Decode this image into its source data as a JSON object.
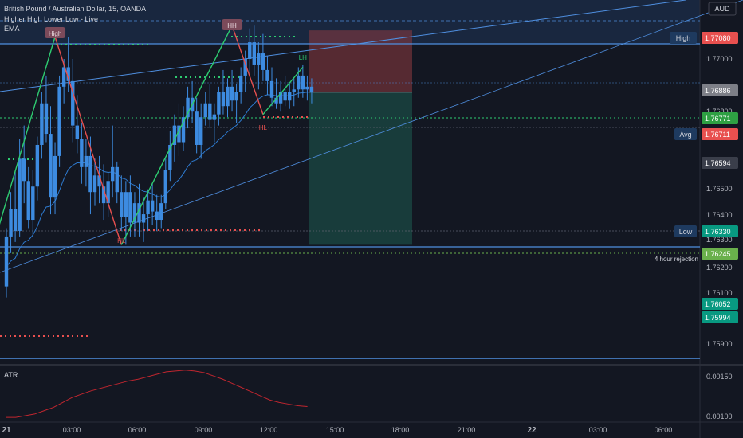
{
  "header": {
    "symbol_line": "British Pound / Australian Dollar, 15, OANDA",
    "indicator_1": "Higher High Lower Low - Live",
    "indicator_2": "EMA",
    "currency": "AUD",
    "lower_indicator": "ATR"
  },
  "colors": {
    "background": "#131722",
    "bull_candle": "#3d8be0",
    "bear_candle": "#3d8be0",
    "ema": "#2e7bd1",
    "zigzag_up": "#2ecc71",
    "zigzag_down": "#e8504f",
    "atr": "#c0262f",
    "stop_zone": "#8e3b3f",
    "target_zone": "#1f6b5c"
  },
  "chart_data": [
    {
      "type": "candlestick",
      "symbol": "British Pound / Australian Dollar",
      "interval": "15",
      "source": "OANDA",
      "yaxis": {
        "ticks": [
          "1.77000",
          "1.76800",
          "1.76500",
          "1.76400",
          "1.76300",
          "1.76200",
          "1.76100",
          "1.75900"
        ]
      },
      "xaxis": {
        "ticks": [
          "21",
          "03:00",
          "06:00",
          "09:00",
          "12:00",
          "15:00",
          "18:00",
          "21:00",
          "22",
          "03:00",
          "06:00"
        ]
      },
      "ohlc": [
        [
          1.7618,
          1.7639,
          1.7614,
          1.7636
        ],
        [
          1.7636,
          1.7652,
          1.763,
          1.7646
        ],
        [
          1.7646,
          1.766,
          1.7634,
          1.7638
        ],
        [
          1.7638,
          1.7671,
          1.7636,
          1.7664
        ],
        [
          1.7664,
          1.7676,
          1.7648,
          1.7656
        ],
        [
          1.7656,
          1.7661,
          1.7639,
          1.7642
        ],
        [
          1.7642,
          1.766,
          1.7636,
          1.7654
        ],
        [
          1.7654,
          1.7672,
          1.7649,
          1.7669
        ],
        [
          1.7669,
          1.7688,
          1.7664,
          1.7684
        ],
        [
          1.7684,
          1.7694,
          1.767,
          1.7673
        ],
        [
          1.7673,
          1.7683,
          1.7644,
          1.765
        ],
        [
          1.765,
          1.767,
          1.7644,
          1.7665
        ],
        [
          1.7665,
          1.7694,
          1.7661,
          1.769
        ],
        [
          1.769,
          1.77,
          1.7684,
          1.7697
        ],
        [
          1.7697,
          1.7708,
          1.7688,
          1.7692
        ],
        [
          1.7692,
          1.77,
          1.767,
          1.7676
        ],
        [
          1.7676,
          1.7687,
          1.7666,
          1.7671
        ],
        [
          1.7671,
          1.7677,
          1.7655,
          1.7661
        ],
        [
          1.7661,
          1.7671,
          1.7654,
          1.7665
        ],
        [
          1.7665,
          1.7672,
          1.7644,
          1.7652
        ],
        [
          1.7652,
          1.7664,
          1.7647,
          1.7658
        ],
        [
          1.7658,
          1.7665,
          1.7648,
          1.7654
        ],
        [
          1.7654,
          1.7662,
          1.7642,
          1.7648
        ],
        [
          1.7648,
          1.7659,
          1.7643,
          1.7656
        ],
        [
          1.7656,
          1.7676,
          1.765,
          1.7661
        ],
        [
          1.7661,
          1.7663,
          1.7648,
          1.7652
        ],
        [
          1.7652,
          1.7658,
          1.7638,
          1.7643
        ],
        [
          1.7643,
          1.7656,
          1.7633,
          1.7652
        ],
        [
          1.7652,
          1.7658,
          1.7636,
          1.7641
        ],
        [
          1.7641,
          1.7652,
          1.7636,
          1.7648
        ],
        [
          1.7648,
          1.7655,
          1.7636,
          1.7641
        ],
        [
          1.7641,
          1.765,
          1.7634,
          1.7644
        ],
        [
          1.7644,
          1.7653,
          1.7638,
          1.7649
        ],
        [
          1.7649,
          1.7655,
          1.764,
          1.7645
        ],
        [
          1.7645,
          1.7651,
          1.7638,
          1.7642
        ],
        [
          1.7642,
          1.7651,
          1.7639,
          1.7648
        ],
        [
          1.7648,
          1.7664,
          1.7646,
          1.766
        ],
        [
          1.766,
          1.7674,
          1.7656,
          1.7669
        ],
        [
          1.7669,
          1.768,
          1.7663,
          1.7676
        ],
        [
          1.7676,
          1.7684,
          1.7665,
          1.767
        ],
        [
          1.767,
          1.7683,
          1.7667,
          1.7679
        ],
        [
          1.7679,
          1.769,
          1.7675,
          1.7686
        ],
        [
          1.7686,
          1.7692,
          1.7677,
          1.7681
        ],
        [
          1.7681,
          1.7686,
          1.7666,
          1.7669
        ],
        [
          1.7669,
          1.7684,
          1.7664,
          1.7679
        ],
        [
          1.7679,
          1.7688,
          1.7676,
          1.7684
        ],
        [
          1.7684,
          1.7691,
          1.7675,
          1.7678
        ],
        [
          1.7678,
          1.7684,
          1.767,
          1.768
        ],
        [
          1.768,
          1.769,
          1.7676,
          1.7688
        ],
        [
          1.7688,
          1.7696,
          1.768,
          1.7683
        ],
        [
          1.7683,
          1.7693,
          1.7679,
          1.769
        ],
        [
          1.769,
          1.7696,
          1.7681,
          1.7685
        ],
        [
          1.7685,
          1.7691,
          1.7677,
          1.7688
        ],
        [
          1.7688,
          1.7697,
          1.7684,
          1.7694
        ],
        [
          1.7694,
          1.7703,
          1.7688,
          1.77
        ],
        [
          1.77,
          1.7711,
          1.7695,
          1.7706
        ],
        [
          1.7706,
          1.7712,
          1.7694,
          1.7698
        ],
        [
          1.7698,
          1.7706,
          1.7689,
          1.7702
        ],
        [
          1.7702,
          1.7709,
          1.7692,
          1.7696
        ],
        [
          1.7696,
          1.7701,
          1.7687,
          1.7692
        ],
        [
          1.7692,
          1.7697,
          1.7683,
          1.7686
        ],
        [
          1.7686,
          1.7693,
          1.7682,
          1.7684
        ],
        [
          1.7684,
          1.7692,
          1.7681,
          1.7688
        ],
        [
          1.7688,
          1.7694,
          1.7683,
          1.7685
        ],
        [
          1.7685,
          1.7691,
          1.7682,
          1.7688
        ],
        [
          1.7688,
          1.7693,
          1.7683,
          1.7689
        ],
        [
          1.7689,
          1.7697,
          1.7686,
          1.7694
        ],
        [
          1.7694,
          1.7698,
          1.7686,
          1.7689
        ],
        [
          1.7689,
          1.7694,
          1.7685,
          1.769
        ],
        [
          1.769,
          1.7693,
          1.7684,
          1.7688
        ]
      ],
      "ema_label": "EMA",
      "zigzag_pivots": [
        {
          "label": "High",
          "price": 1.7708
        },
        {
          "label": "HL",
          "price": 1.7633
        },
        {
          "label": "HH",
          "price": 1.7712
        },
        {
          "label": "HL",
          "price": 1.768
        },
        {
          "label": "LH",
          "price": 1.7697
        }
      ],
      "price_labels": [
        {
          "text": "High",
          "price": "1.77080",
          "color": "#e8504f"
        },
        {
          "text": "",
          "price": "1.76886",
          "color": "#7d7f87"
        },
        {
          "text": "",
          "price": "1.76771",
          "color": "#2ea043"
        },
        {
          "text": "Avg",
          "price": "1.76711",
          "color": "#e8504f"
        },
        {
          "text": "",
          "price": "1.76594",
          "color": "#3a3e4a"
        },
        {
          "text": "Low",
          "price": "1.76330",
          "color": "#089981"
        },
        {
          "text": "",
          "price": "1.76245",
          "color": "#6ab04c"
        },
        {
          "text": "",
          "price": "1.76052",
          "color": "#089981"
        },
        {
          "text": "",
          "price": "1.75994",
          "color": "#089981"
        }
      ],
      "annotations": [
        "4 hour rejection"
      ],
      "position": {
        "entry": 1.7688,
        "stop": 1.7708,
        "target": 1.7633
      }
    },
    {
      "type": "line",
      "title": "ATR",
      "yaxis": {
        "ticks": [
          "0.00150",
          "0.00100"
        ]
      },
      "values": [
        0.001,
        0.001,
        0.00102,
        0.00104,
        0.00108,
        0.00112,
        0.00118,
        0.00124,
        0.00128,
        0.00132,
        0.00135,
        0.00138,
        0.00141,
        0.00144,
        0.00146,
        0.00149,
        0.00152,
        0.00155,
        0.00156,
        0.00157,
        0.00156,
        0.00154,
        0.0015,
        0.00146,
        0.00141,
        0.00136,
        0.00131,
        0.00126,
        0.00121,
        0.00118,
        0.00116,
        0.00114,
        0.00113
      ]
    }
  ]
}
